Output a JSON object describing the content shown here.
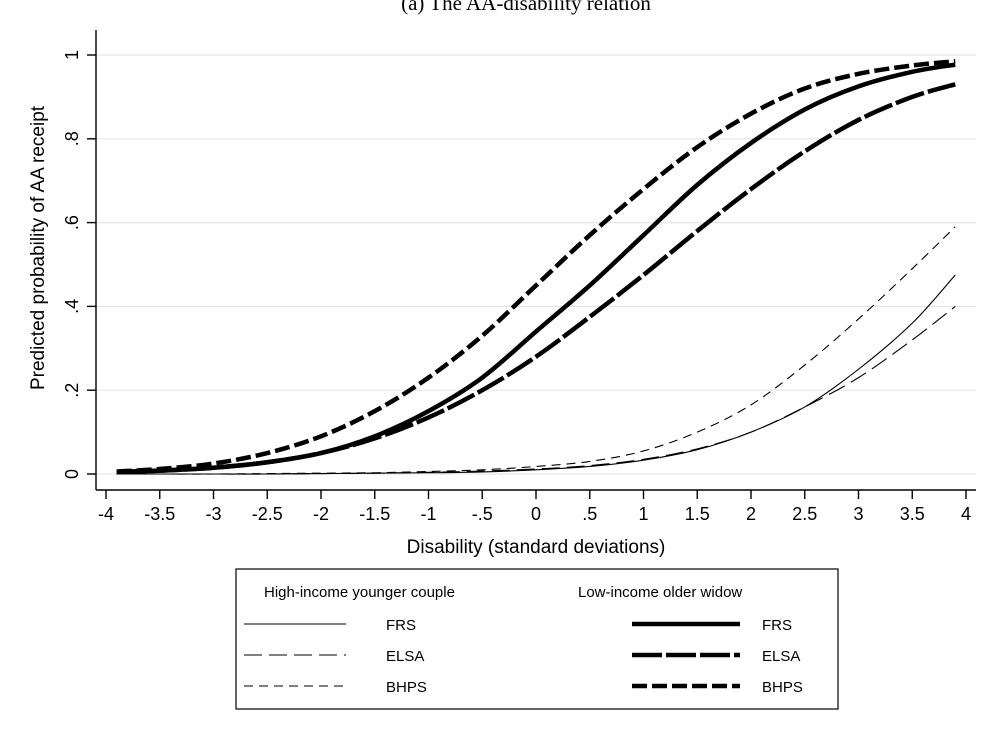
{
  "chart_data": {
    "type": "line",
    "title": "(a) The AA-disability relation",
    "xlabel": "Disability (standard deviations)",
    "ylabel": "Predicted probability of AA receipt",
    "xlim": [
      -4,
      4
    ],
    "ylim": [
      0,
      1
    ],
    "x_ticks": [
      "-4",
      "-3.5",
      "-3",
      "-2.5",
      "-2",
      "-1.5",
      "-1",
      "-.5",
      "0",
      ".5",
      "1",
      "1.5",
      "2",
      "2.5",
      "3",
      "3.5",
      "4"
    ],
    "y_ticks": [
      "0",
      ".2",
      ".4",
      ".6",
      ".8",
      "1"
    ],
    "grid": "horizontal",
    "legend_position": "bottom",
    "legend_groups": [
      "High-income younger couple",
      "Low-income older widow"
    ],
    "x": [
      -3.9,
      -3.5,
      -3,
      -2.5,
      -2,
      -1.5,
      -1,
      -0.5,
      0,
      0.5,
      1,
      1.5,
      2,
      2.5,
      3,
      3.5,
      3.9
    ],
    "series": [
      {
        "name": "FRS",
        "group": "High-income younger couple",
        "style": "solid",
        "weight": "thin",
        "values": [
          0.0,
          0.0,
          0.0,
          0.0,
          0.001,
          0.002,
          0.003,
          0.005,
          0.01,
          0.018,
          0.033,
          0.058,
          0.1,
          0.16,
          0.25,
          0.36,
          0.475
        ]
      },
      {
        "name": "ELSA",
        "group": "High-income younger couple",
        "style": "longdash",
        "weight": "thin",
        "values": [
          0.0,
          0.0,
          0.0,
          0.0,
          0.001,
          0.002,
          0.004,
          0.007,
          0.012,
          0.02,
          0.035,
          0.06,
          0.1,
          0.16,
          0.23,
          0.32,
          0.4
        ]
      },
      {
        "name": "BHPS",
        "group": "High-income younger couple",
        "style": "dash",
        "weight": "thin",
        "values": [
          0.0,
          0.0,
          0.0,
          0.001,
          0.002,
          0.003,
          0.006,
          0.01,
          0.018,
          0.03,
          0.055,
          0.1,
          0.165,
          0.26,
          0.37,
          0.49,
          0.59
        ]
      },
      {
        "name": "FRS",
        "group": "Low-income older widow",
        "style": "solid",
        "weight": "thick",
        "values": [
          0.005,
          0.008,
          0.015,
          0.028,
          0.05,
          0.09,
          0.15,
          0.23,
          0.34,
          0.45,
          0.57,
          0.69,
          0.79,
          0.87,
          0.925,
          0.96,
          0.977
        ]
      },
      {
        "name": "ELSA",
        "group": "Low-income older widow",
        "style": "longdash",
        "weight": "thick",
        "values": [
          0.005,
          0.008,
          0.015,
          0.028,
          0.05,
          0.085,
          0.135,
          0.2,
          0.28,
          0.375,
          0.475,
          0.58,
          0.68,
          0.77,
          0.845,
          0.9,
          0.93
        ]
      },
      {
        "name": "BHPS",
        "group": "Low-income older widow",
        "style": "dash",
        "weight": "thick",
        "values": [
          0.006,
          0.012,
          0.025,
          0.05,
          0.09,
          0.15,
          0.23,
          0.33,
          0.45,
          0.57,
          0.68,
          0.78,
          0.86,
          0.92,
          0.955,
          0.975,
          0.985
        ]
      }
    ]
  }
}
